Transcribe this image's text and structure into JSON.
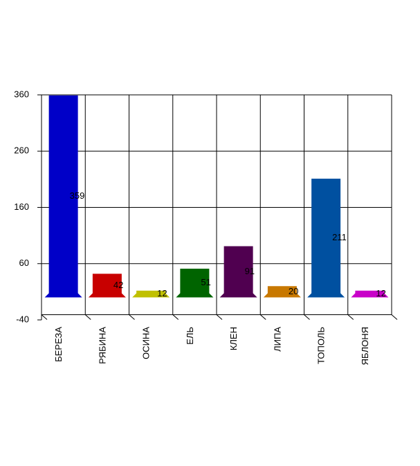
{
  "chart_data": {
    "type": "bar",
    "categories": [
      "БЕРЕЗА",
      "РЯБИНА",
      "ОСИНА",
      "ЕЛЬ",
      "КЛЕН",
      "ЛИПА",
      "ТОПОЛЬ",
      "ЯБЛОНЯ"
    ],
    "values": [
      359,
      42,
      12,
      51,
      91,
      20,
      211,
      12
    ],
    "colors": [
      "#0000c8",
      "#c80000",
      "#c0c000",
      "#006400",
      "#500050",
      "#c87800",
      "#0050a0",
      "#c800c8"
    ],
    "ylim": [
      -40,
      360
    ],
    "yticks": [
      -40,
      60,
      160,
      260,
      360
    ],
    "grid": true
  }
}
